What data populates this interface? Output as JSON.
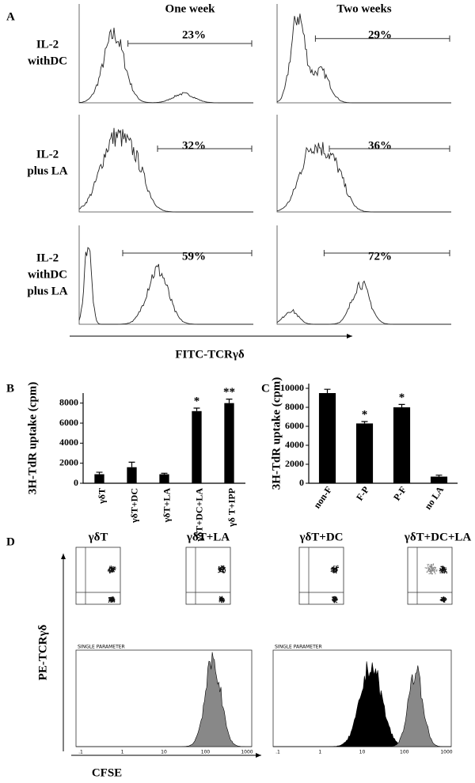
{
  "panel_a": {
    "letter": "A",
    "columns": [
      "One week",
      "Two weeks"
    ],
    "rows": [
      {
        "label": [
          "IL-2",
          "withDC"
        ],
        "percentages": [
          "23%",
          "29%"
        ]
      },
      {
        "label": [
          "IL-2",
          "plus LA"
        ],
        "percentages": [
          "32%",
          "36%"
        ]
      },
      {
        "label": [
          "IL-2",
          "withDC",
          "plus LA"
        ],
        "percentages": [
          "59%",
          "72%"
        ]
      }
    ],
    "x_axis_label": "FITC-TCRγδ"
  },
  "chart_data": [
    {
      "type": "bar",
      "panel": "B",
      "ylabel": "3H-TdR uptake (cpm)",
      "categories": [
        "γδT",
        "γδT+DC",
        "γδT+LA",
        "γδT+DC+LA",
        "γδ T+IPP"
      ],
      "values": [
        900,
        1600,
        900,
        7200,
        8000
      ],
      "errors": [
        200,
        500,
        100,
        300,
        400
      ],
      "annotations": [
        null,
        null,
        null,
        "*",
        "**"
      ],
      "color": "#000000",
      "ylim": [
        0,
        9000
      ],
      "yticks": [
        0,
        2000,
        4000,
        6000,
        8000
      ]
    },
    {
      "type": "bar",
      "panel": "C",
      "ylabel": "3H-TdR uptake (cpm)",
      "categories": [
        "non-F",
        "F-P",
        "P-F",
        "no LA"
      ],
      "values": [
        9500,
        6300,
        8000,
        700
      ],
      "errors": [
        400,
        200,
        300,
        150
      ],
      "annotations": [
        null,
        "*",
        "*",
        null
      ],
      "color": "#000000",
      "ylim": [
        0,
        10500
      ],
      "yticks": [
        0,
        2000,
        4000,
        6000,
        8000,
        10000
      ]
    }
  ],
  "panel_d": {
    "letter": "D",
    "labels": [
      "γδT",
      "γδT+LA",
      "γδT+DC",
      "γδT+DC+LA"
    ],
    "y_axis_label": "PE-TCRγδ",
    "x_axis_label": "CFSE",
    "histogram_titles": [
      "SINGLE PARAMETER",
      "SINGLE PARAMETER"
    ],
    "histogram_xticks": [
      ".1",
      "1",
      "10",
      "100",
      "1000"
    ]
  }
}
